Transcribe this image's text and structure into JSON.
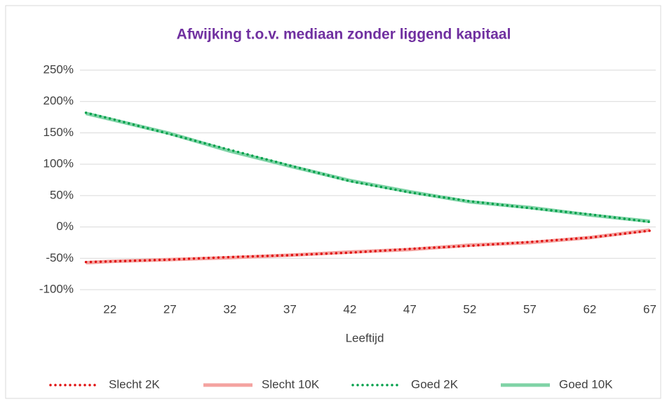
{
  "chart_data": {
    "type": "line",
    "title": "Afwijking t.o.v. mediaan zonder liggend kapitaal",
    "x_label": "Leeftijd",
    "x": [
      20,
      22,
      27,
      32,
      37,
      42,
      47,
      52,
      57,
      62,
      67
    ],
    "xlim": [
      19.5,
      67.5
    ],
    "xticks": [
      22,
      27,
      32,
      37,
      42,
      47,
      52,
      57,
      62,
      67
    ],
    "ylim": [
      -100,
      250
    ],
    "yticks": [
      {
        "value": -100,
        "label": "-100%"
      },
      {
        "value": -50,
        "label": "-50%"
      },
      {
        "value": 0,
        "label": "0%"
      },
      {
        "value": 50,
        "label": "50%"
      },
      {
        "value": 100,
        "label": "100%"
      },
      {
        "value": 150,
        "label": "150%"
      },
      {
        "value": 200,
        "label": "200%"
      },
      {
        "value": 250,
        "label": "250%"
      }
    ],
    "grid": true,
    "legend": "bottom",
    "series": [
      {
        "name": "Slecht 2K",
        "color": "#e01010",
        "dash": "dotted",
        "values": [
          -56,
          -55,
          -52,
          -48,
          -45,
          -41,
          -35,
          -30,
          -24,
          -17,
          -6
        ]
      },
      {
        "name": "Slecht 10K",
        "color": "#f4a3a0",
        "dash": "solid",
        "values": [
          -57,
          -55,
          -52,
          -49,
          -45,
          -40,
          -36,
          -29,
          -25,
          -17,
          -5
        ]
      },
      {
        "name": "Goed 2K",
        "color": "#00a04a",
        "dash": "dotted",
        "values": [
          182,
          173,
          148,
          123,
          98,
          73,
          55,
          41,
          30,
          20,
          8
        ]
      },
      {
        "name": "Goed 10K",
        "color": "#7fd3a6",
        "dash": "solid",
        "values": [
          181,
          172,
          149,
          121,
          97,
          74,
          56,
          40,
          31,
          19,
          9
        ]
      }
    ]
  }
}
